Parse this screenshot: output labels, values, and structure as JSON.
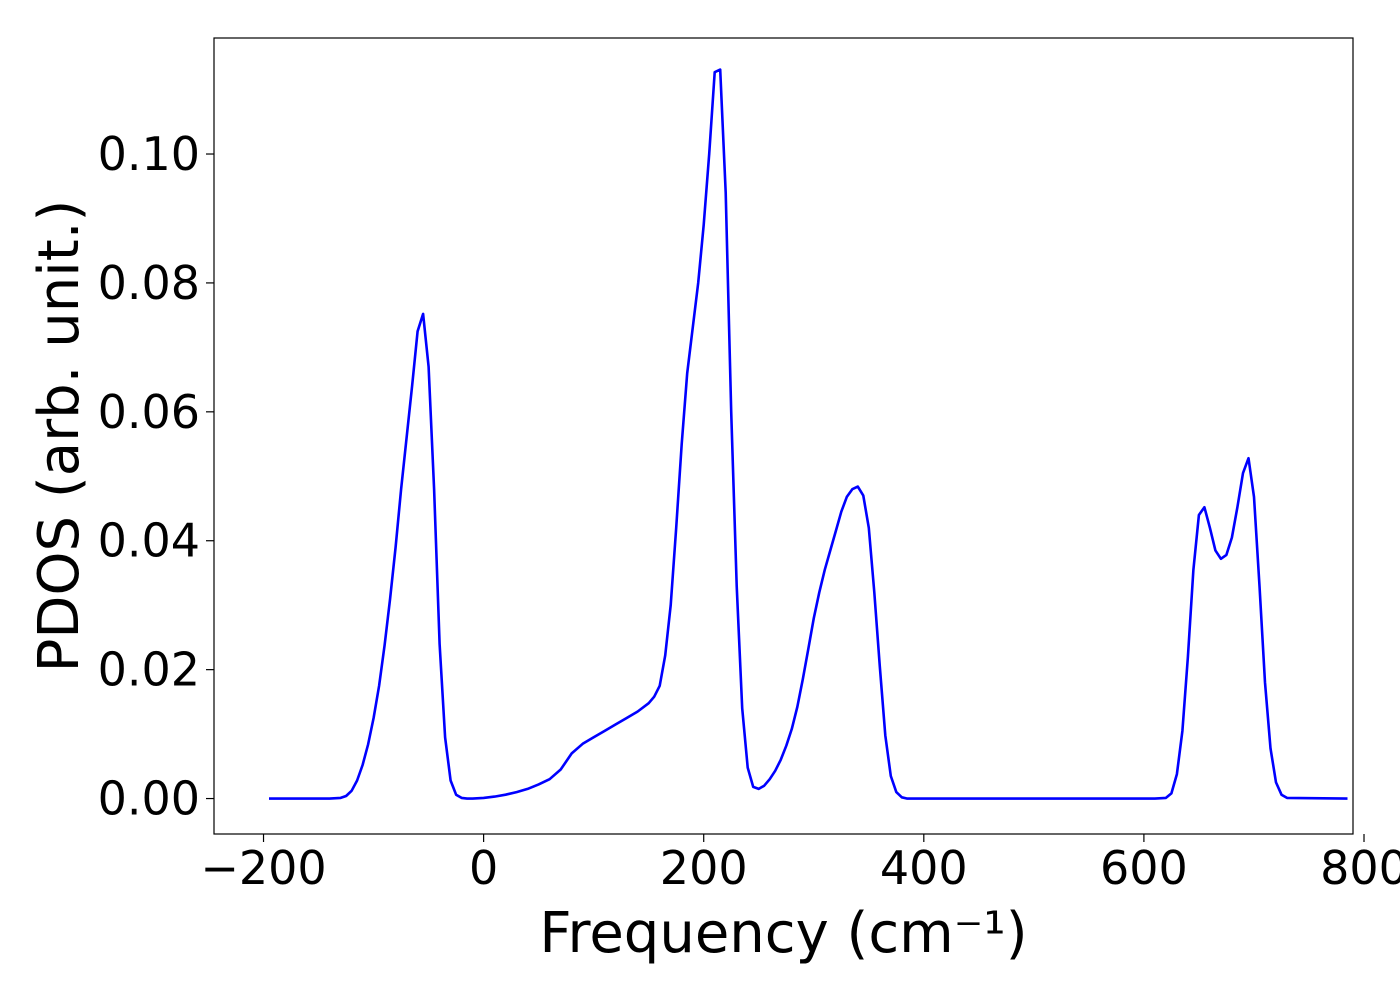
{
  "chart_data": {
    "type": "line",
    "title": "",
    "xlabel": "Frequency (cm⁻¹)",
    "ylabel": "PDOS (arb. unit.)",
    "xlim": [
      -245,
      790
    ],
    "ylim": [
      -0.0055,
      0.118
    ],
    "xticks": [
      -200,
      0,
      200,
      400,
      600,
      800
    ],
    "xtick_labels": [
      "−200",
      "0",
      "200",
      "400",
      "600",
      "800"
    ],
    "yticks": [
      0.0,
      0.02,
      0.04,
      0.06,
      0.08,
      0.1
    ],
    "ytick_labels": [
      "0.00",
      "0.02",
      "0.04",
      "0.06",
      "0.08",
      "0.10"
    ],
    "grid": false,
    "legend": "none",
    "series": [
      {
        "color": "#0000ff",
        "x": [
          -195,
          -140,
          -130,
          -125,
          -120,
          -115,
          -110,
          -105,
          -100,
          -95,
          -90,
          -85,
          -80,
          -75,
          -70,
          -65,
          -60,
          -55,
          -50,
          -45,
          -40,
          -35,
          -30,
          -25,
          -20,
          -15,
          -10,
          0,
          10,
          20,
          30,
          40,
          50,
          60,
          70,
          80,
          90,
          100,
          110,
          120,
          130,
          140,
          150,
          155,
          160,
          165,
          170,
          175,
          180,
          185,
          190,
          195,
          200,
          205,
          210,
          215,
          220,
          225,
          230,
          235,
          240,
          245,
          250,
          255,
          260,
          265,
          270,
          275,
          280,
          285,
          290,
          295,
          300,
          305,
          310,
          315,
          320,
          325,
          330,
          335,
          340,
          345,
          350,
          355,
          360,
          365,
          370,
          375,
          380,
          385,
          390,
          400,
          500,
          610,
          620,
          625,
          630,
          635,
          640,
          645,
          650,
          655,
          660,
          665,
          670,
          675,
          680,
          685,
          690,
          695,
          700,
          705,
          710,
          715,
          720,
          725,
          730,
          785
        ],
        "y": [
          0.0,
          0.0,
          0.0001,
          0.0004,
          0.0012,
          0.0028,
          0.0052,
          0.0084,
          0.0125,
          0.0175,
          0.0238,
          0.031,
          0.039,
          0.048,
          0.056,
          0.064,
          0.0725,
          0.0752,
          0.067,
          0.048,
          0.024,
          0.0095,
          0.0028,
          0.0006,
          0.0001,
          0.0,
          0.0,
          0.0001,
          0.0003,
          0.0006,
          0.001,
          0.0015,
          0.0022,
          0.003,
          0.0045,
          0.007,
          0.0085,
          0.0095,
          0.0105,
          0.0115,
          0.0125,
          0.0135,
          0.0148,
          0.0158,
          0.0175,
          0.0222,
          0.03,
          0.042,
          0.055,
          0.066,
          0.073,
          0.08,
          0.089,
          0.1,
          0.1127,
          0.1131,
          0.094,
          0.06,
          0.033,
          0.014,
          0.0048,
          0.0018,
          0.0015,
          0.002,
          0.003,
          0.0043,
          0.006,
          0.0082,
          0.0108,
          0.0142,
          0.0185,
          0.0232,
          0.028,
          0.032,
          0.0355,
          0.0385,
          0.0415,
          0.0445,
          0.0468,
          0.048,
          0.0484,
          0.047,
          0.042,
          0.032,
          0.0205,
          0.0098,
          0.0035,
          0.001,
          0.0002,
          0.0,
          0.0,
          0.0,
          0.0,
          0.0,
          0.0001,
          0.0008,
          0.0038,
          0.0105,
          0.022,
          0.0355,
          0.044,
          0.0452,
          0.042,
          0.0385,
          0.0372,
          0.0378,
          0.0405,
          0.0452,
          0.0505,
          0.0528,
          0.0468,
          0.033,
          0.018,
          0.0078,
          0.0025,
          0.0006,
          0.0001,
          0.0
        ]
      }
    ]
  }
}
